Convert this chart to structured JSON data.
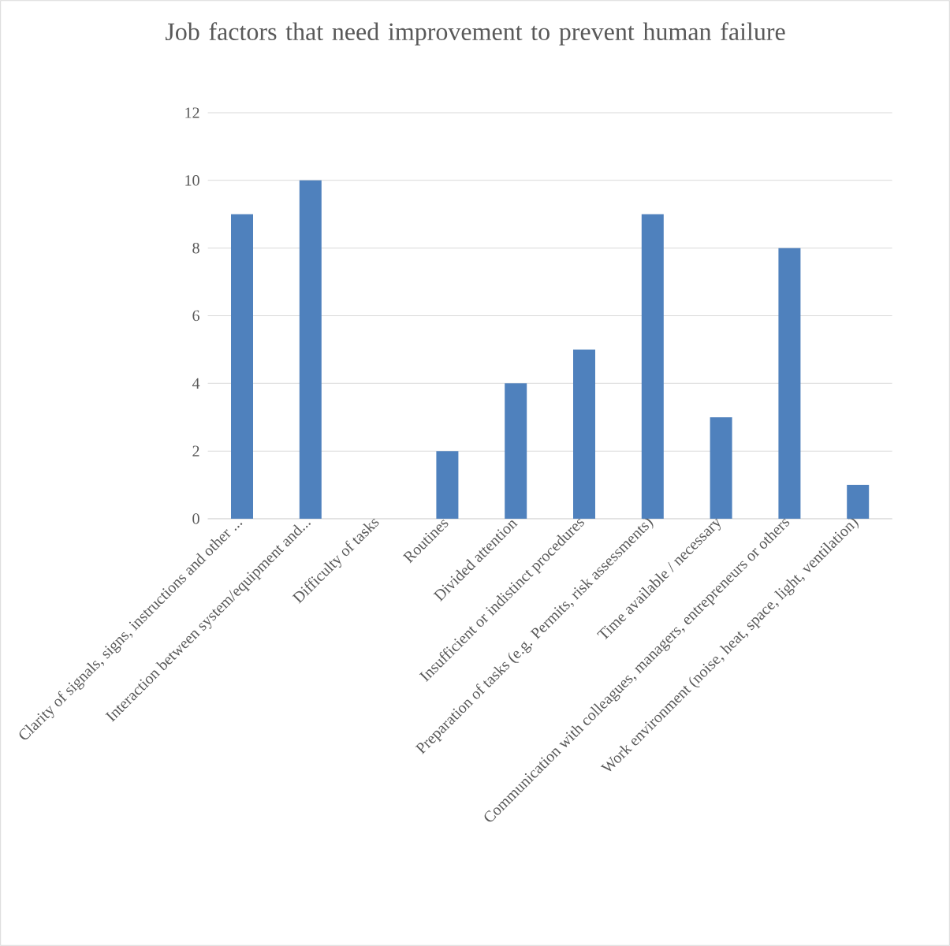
{
  "chart_data": {
    "type": "bar",
    "title": "Job factors that need improvement to prevent human failure",
    "categories": [
      "Clarity of signals, signs, instructions and other ...",
      "Interaction between system/equipment and...",
      "Difficulty of tasks",
      "Routines",
      "Divided attention",
      "Insufficient or indistinct procedures",
      "Preparation of tasks (e.g. Permits, risk assessments)",
      "Time available / necessary",
      "Communication with colleagues, managers, entrepreneurs or others",
      "Work environment (noise, heat, space, light, ventilation)"
    ],
    "values": [
      9,
      10,
      0,
      2,
      4,
      5,
      9,
      3,
      8,
      1
    ],
    "color": "#4f81bd",
    "ylim": [
      0,
      12
    ],
    "yticks": [
      0,
      2,
      4,
      6,
      8,
      10,
      12
    ],
    "grid": "y"
  }
}
